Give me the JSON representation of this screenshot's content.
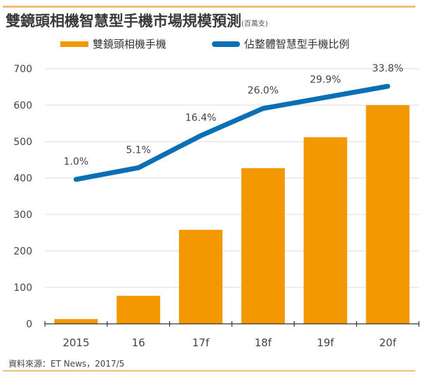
{
  "title": "雙鏡頭相機智慧型手機市場規模預測",
  "unit": "(百萬支)",
  "source": "資料來源：ET News，2017/5",
  "chart_data": {
    "type": "bar",
    "categories": [
      "2015",
      "16",
      "17f",
      "18f",
      "19f",
      "20f"
    ],
    "series": [
      {
        "name": "雙鏡頭相機手機",
        "type": "bar",
        "color": "#f39800",
        "values": [
          13,
          77,
          258,
          427,
          512,
          600
        ]
      },
      {
        "name": "佔整體智慧型手機比例",
        "type": "line",
        "color": "#0a6fb5",
        "values": [
          1.0,
          5.1,
          16.4,
          26.0,
          29.9,
          33.8
        ],
        "labels": [
          "1.0%",
          "5.1%",
          "16.4%",
          "26.0%",
          "29.9%",
          "33.8%"
        ]
      }
    ],
    "ylim": [
      0,
      700
    ],
    "yticks": [
      "0",
      "100",
      "200",
      "300",
      "400",
      "500",
      "600",
      "700"
    ],
    "grid": true,
    "legend": "top"
  }
}
